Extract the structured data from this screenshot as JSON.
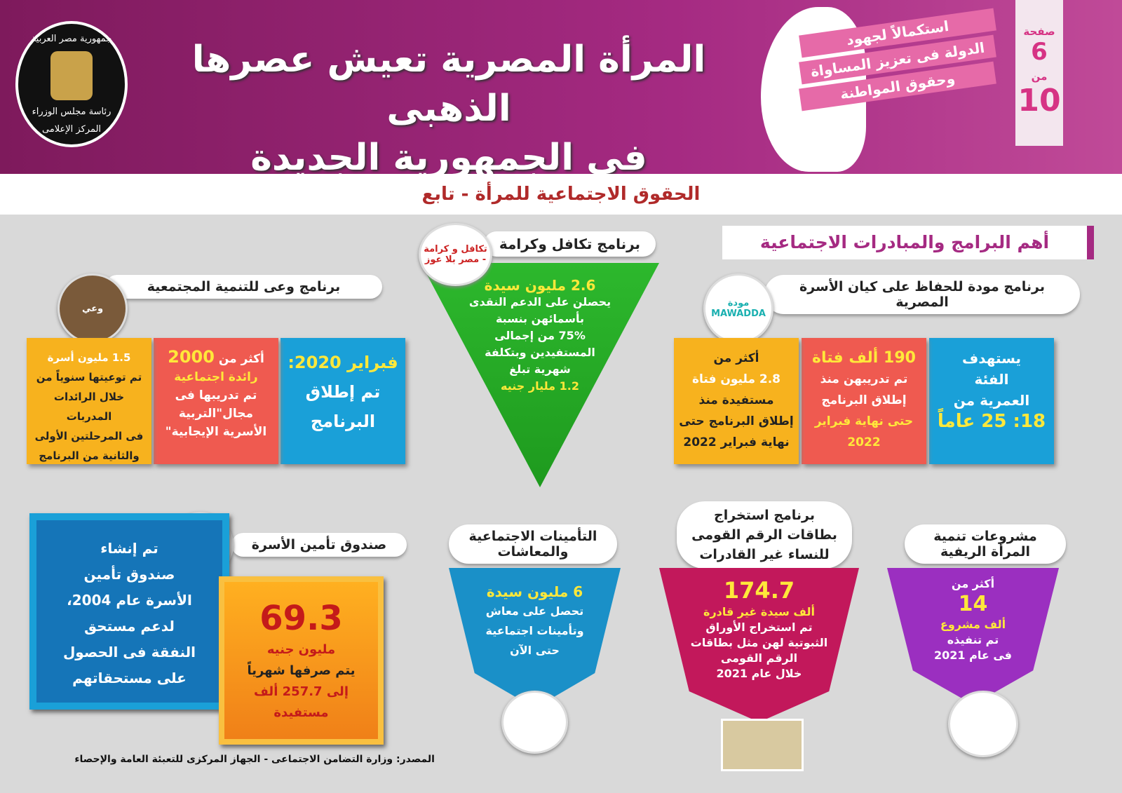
{
  "header": {
    "title_line1": "المرأة المصرية تعيش عصرها الذهبى",
    "title_line2": "فى الجمهورية الجديدة",
    "logo": {
      "top": "جمهورية مصر العربية",
      "middle": "رئاسة مجلس الوزراء",
      "bottom": "المركز الإعلامى"
    },
    "ribbon": [
      "استكمالاً لجهود",
      "الدولة فى تعزيز المساواة",
      "وحقوق المواطنة"
    ],
    "page": {
      "label": "صفحة",
      "current": "6",
      "of": "من",
      "total": "10"
    }
  },
  "subtitle": "الحقوق الاجتماعية للمرأة - تابع",
  "section_title": "أهم البرامج والمبادرات الاجتماعية",
  "mawadda": {
    "title": "برنامج مودة للحفاظ على كيان الأسرة المصرية",
    "logo": "مودة MAWADDA",
    "boxes": [
      {
        "lines": [
          "يستهدف",
          "الفئة",
          "العمرية من"
        ],
        "highlight": "18: 25 عاماً"
      },
      {
        "highlight": "190 ألف فتاة",
        "lines": [
          "تم تدريبهن منذ",
          "إطلاق البرنامج"
        ],
        "highlight2": "حتى نهاية فبراير 2022"
      },
      {
        "lines": [
          "أكثر من"
        ],
        "highlight": "2.8 مليون فتاة",
        "lines2": [
          "مستفيدة منذ",
          "إطلاق البرنامج حتى",
          "نهاية فبراير 2022"
        ]
      }
    ]
  },
  "takaful": {
    "title": "برنامج تكافل وكرامة",
    "logo": "تكافل و كرامة - مصر بلا عوز",
    "highlight": "2.6 مليون سيدة",
    "lines": [
      "يحصلن على الدعم النقدى",
      "بأسمائهن بنسبة",
      "75% من إجمالى",
      "المستفيدين وبتكلفة",
      "شهرية تبلغ"
    ],
    "highlight2": "1.2 مليار جنيه"
  },
  "waai": {
    "title": "برنامج وعى للتنمية المجتمعية",
    "logo": "وعي",
    "boxes": [
      {
        "highlight": "فبراير 2020:",
        "lines": [
          "تم إطلاق",
          "البرنامج"
        ]
      },
      {
        "lines": [
          "أكثر من"
        ],
        "highlight": "2000",
        "highlight2": "رائدة اجتماعية",
        "lines2": [
          "تم تدريبها فى",
          "مجال\"التربية",
          "الأسرية الإيجابية\""
        ]
      },
      {
        "highlight": "1.5 مليون أسرة",
        "lines": [
          "تم توعيتها سنوياً من",
          "خلال الرائدات المدربات",
          "فى المرحلتين الأولى",
          "والثانية من البرنامج"
        ]
      }
    ]
  },
  "rural": {
    "title": "مشروعات تنمية المرأة الريفية",
    "lines": [
      "أكثر من"
    ],
    "highlight": "14",
    "highlight2": "ألف مشروع",
    "lines2": [
      "تم تنفيذه",
      "فى عام 2021"
    ]
  },
  "id_cards": {
    "title": "برنامج استخراج بطاقات الرقم القومى للنساء غير القادرات",
    "highlight": "174.7",
    "highlight2": "ألف سيدة غير قادرة",
    "lines": [
      "تم استخراج الأوراق",
      "الثبوتية لهن مثل بطاقات",
      "الرقم القومى",
      "خلال عام 2021"
    ]
  },
  "insurance": {
    "title": "التأمينات الاجتماعية والمعاشات",
    "highlight": "6 مليون سيدة",
    "lines": [
      "تحصل على معاش",
      "وتأمينات اجتماعية",
      "حتى الآن"
    ]
  },
  "family_fund": {
    "title": "صندوق تأمين الأسرة",
    "description": [
      "تم إنشاء",
      "صندوق تأمين",
      "الأسرة عام 2004،",
      "لدعم مستحق",
      "النفقة فى الحصول",
      "على مستحقاتهم"
    ],
    "highlight": "69.3",
    "lines": [
      "مليون جنيه",
      "يتم صرفها شهرياً",
      "إلى 257.7 ألف",
      "مستفيدة"
    ]
  },
  "source": "المصدر: وزارة التضامن الاجتماعى - الجهاز المركزى للتعبئة العامة والإحصاء",
  "colors": {
    "header": "#a52a82",
    "green": "#2db82d",
    "blue": "#1aa0d8",
    "red": "#ef5a50",
    "orange": "#f7b21e",
    "purple": "#9b2fc0",
    "magenta": "#c2185b"
  }
}
